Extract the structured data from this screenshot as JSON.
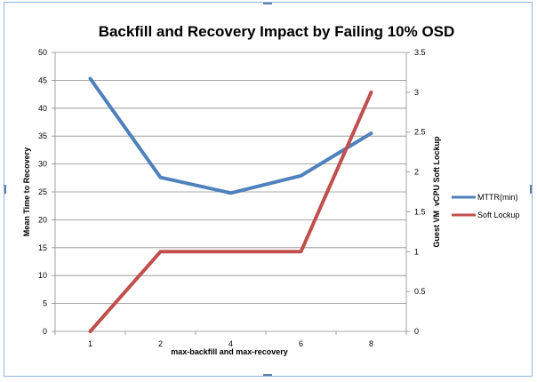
{
  "chart_data": {
    "type": "line",
    "title": "Backfill and Recovery Impact by Failing 10% OSD",
    "xlabel": "max-backfill and max-recovery",
    "ylabel": "Mean Time to Recovery",
    "y2label": "Guest VM  vCPU Soft Lockup",
    "categories": [
      "1",
      "2",
      "4",
      "6",
      "8"
    ],
    "ylim": [
      0,
      50
    ],
    "yticks": [
      0,
      5,
      10,
      15,
      20,
      25,
      30,
      35,
      40,
      45,
      50
    ],
    "y2lim": [
      0,
      3.5
    ],
    "y2ticks": [
      "0",
      "0.5",
      "1",
      "1.5",
      "2",
      "2.5",
      "3",
      "3.5"
    ],
    "series": [
      {
        "name": "MTTR(min)",
        "axis": "left",
        "color": "#4f81bd",
        "values": [
          45.3,
          27.6,
          24.8,
          27.9,
          35.5
        ]
      },
      {
        "name": "Soft Lockup",
        "axis": "right",
        "color": "#c0504d",
        "values": [
          0,
          1,
          1,
          1,
          3
        ]
      }
    ],
    "legend": "right",
    "grid": true
  }
}
